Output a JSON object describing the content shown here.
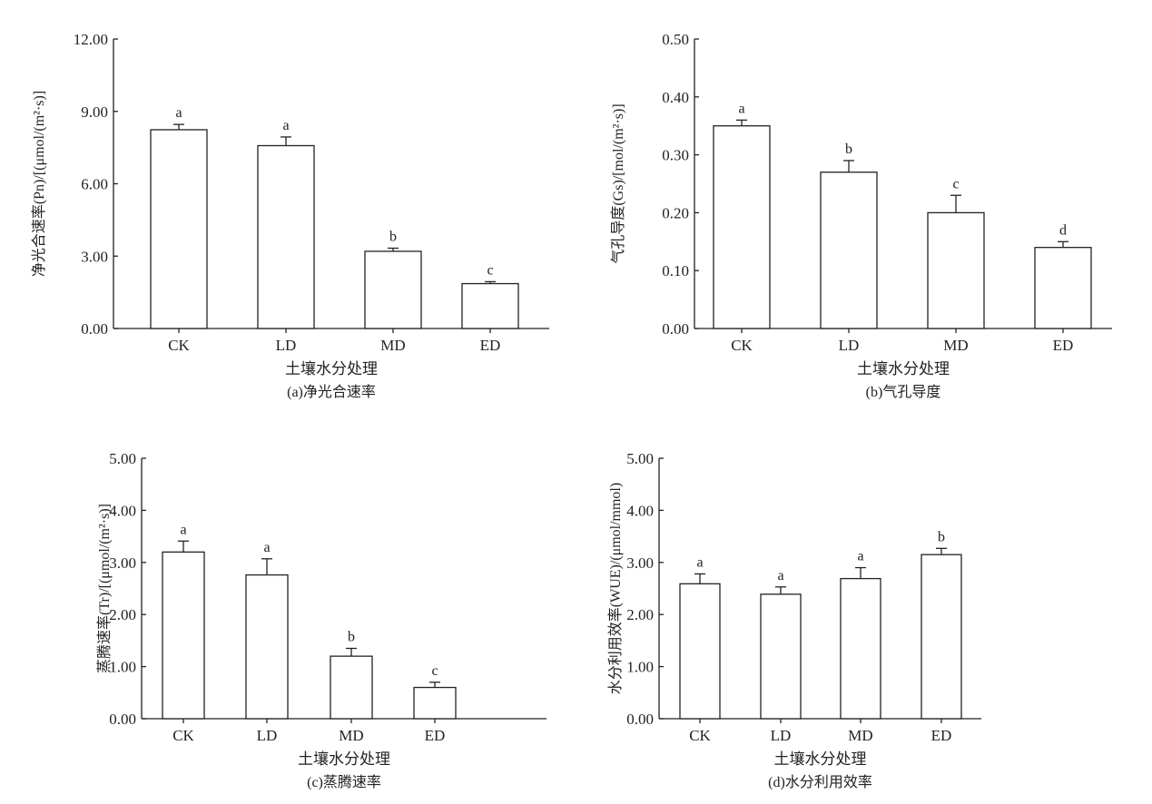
{
  "chart_data": [
    {
      "type": "bar",
      "title": "(a)净光合速率",
      "xlabel": "土壤水分处理",
      "ylabel": "净光合速率(Pn)/[(μmol/(m²·s)]",
      "categories": [
        "CK",
        "LD",
        "MD",
        "ED"
      ],
      "values": [
        8.24,
        7.58,
        3.2,
        1.86
      ],
      "errors": [
        0.22,
        0.36,
        0.13,
        0.08
      ],
      "letters": [
        "a",
        "a",
        "b",
        "c"
      ],
      "ylim": [
        0,
        12
      ],
      "yticks": [
        "0.00",
        "3.00",
        "6.00",
        "9.00",
        "12.00"
      ],
      "grid": false
    },
    {
      "type": "bar",
      "title": "(b)气孔导度",
      "xlabel": "土壤水分处理",
      "ylabel": "气孔导度(Gs)/[mol/(m²·s)]",
      "categories": [
        "CK",
        "LD",
        "MD",
        "ED"
      ],
      "values": [
        0.35,
        0.27,
        0.2,
        0.14
      ],
      "errors": [
        0.01,
        0.02,
        0.03,
        0.01
      ],
      "letters": [
        "a",
        "b",
        "c",
        "d"
      ],
      "ylim": [
        0,
        0.5
      ],
      "yticks": [
        "0.00",
        "0.10",
        "0.20",
        "0.30",
        "0.40",
        "0.50"
      ],
      "grid": false
    },
    {
      "type": "bar",
      "title": "(c)蒸腾速率",
      "xlabel": "土壤水分处理",
      "ylabel": "蒸腾速率(Tr)/[(μmol/(m²·s)]",
      "categories": [
        "CK",
        "LD",
        "MD",
        "ED"
      ],
      "values": [
        3.2,
        2.76,
        1.2,
        0.6
      ],
      "errors": [
        0.21,
        0.31,
        0.15,
        0.1
      ],
      "letters": [
        "a",
        "a",
        "b",
        "c"
      ],
      "ylim": [
        0,
        5
      ],
      "yticks": [
        "0.00",
        "1.00",
        "2.00",
        "3.00",
        "4.00",
        "5.00"
      ],
      "grid": false
    },
    {
      "type": "bar",
      "title": "(d)水分利用效率",
      "xlabel": "土壤水分处理",
      "ylabel": "水分利用效率(WUE)/(μmol/mmol)",
      "categories": [
        "CK",
        "LD",
        "MD",
        "ED"
      ],
      "values": [
        2.59,
        2.39,
        2.69,
        3.15
      ],
      "errors": [
        0.19,
        0.14,
        0.21,
        0.12
      ],
      "letters": [
        "a",
        "a",
        "a",
        "b"
      ],
      "ylim": [
        0,
        5
      ],
      "yticks": [
        "0.00",
        "1.00",
        "2.00",
        "3.00",
        "4.00",
        "5.00"
      ],
      "grid": false
    }
  ]
}
